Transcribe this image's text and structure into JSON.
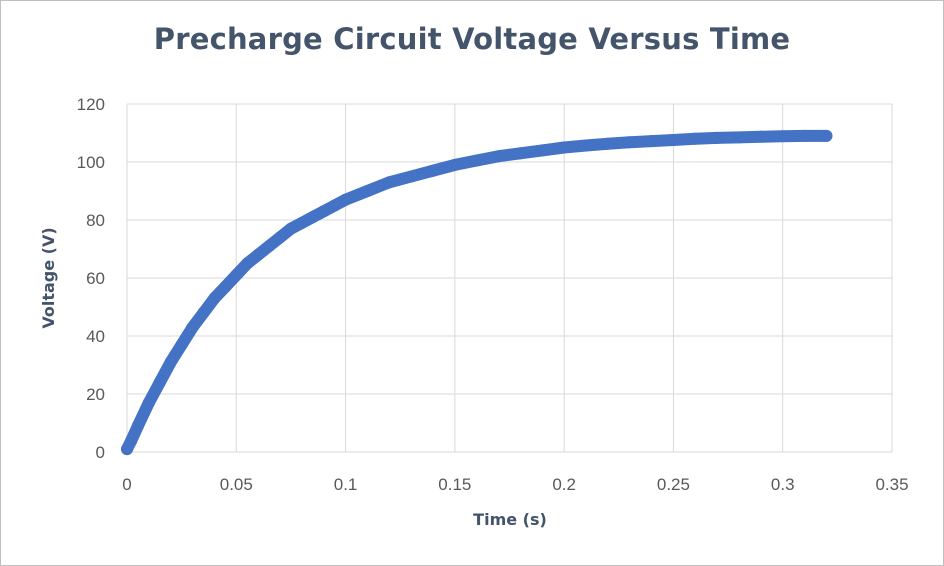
{
  "chart_data": {
    "type": "scatter",
    "title": "Precharge Circuit Voltage Versus Time",
    "xlabel": "Time (s)",
    "ylabel": "Voltage (V)",
    "xlim": [
      0,
      0.35
    ],
    "ylim": [
      0,
      120
    ],
    "x_ticks": [
      "0",
      "0.05",
      "0.1",
      "0.15",
      "0.2",
      "0.25",
      "0.3",
      "0.35"
    ],
    "y_ticks": [
      "0",
      "20",
      "40",
      "60",
      "80",
      "100",
      "120"
    ],
    "grid": true,
    "legend": "none",
    "series": [
      {
        "color": "#4472c4",
        "x": [
          0,
          0.002,
          0.005,
          0.01,
          0.015,
          0.02,
          0.025,
          0.03,
          0.035,
          0.04,
          0.045,
          0.05,
          0.055,
          0.06,
          0.065,
          0.07,
          0.075,
          0.08,
          0.085,
          0.09,
          0.095,
          0.1,
          0.11,
          0.12,
          0.13,
          0.14,
          0.15,
          0.16,
          0.17,
          0.18,
          0.19,
          0.2,
          0.21,
          0.22,
          0.23,
          0.24,
          0.25,
          0.26,
          0.27,
          0.28,
          0.29,
          0.3,
          0.31,
          0.32
        ],
        "y": [
          1,
          4,
          9,
          17,
          24,
          31,
          37,
          43,
          48,
          53,
          57,
          61,
          65,
          68,
          71,
          74,
          77,
          79,
          81,
          83,
          85,
          87,
          90,
          93,
          95,
          97,
          99,
          100.5,
          102,
          103,
          104,
          105,
          105.7,
          106.3,
          106.8,
          107.2,
          107.6,
          108,
          108.3,
          108.5,
          108.7,
          108.9,
          109,
          109
        ]
      }
    ]
  }
}
